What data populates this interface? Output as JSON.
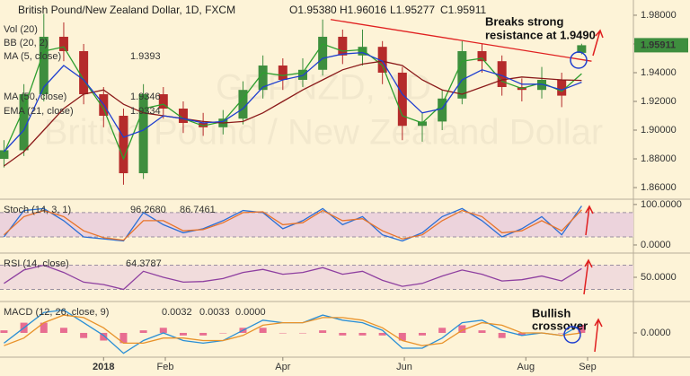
{
  "chart_data": [
    {
      "type": "candlestick",
      "title": "British Pound/New Zealand Dollar, 1D, FXCM",
      "header_ohlc": [
        "O1.95380",
        "H1.96016",
        "L1.95277",
        "C1.95911"
      ],
      "watermark": [
        "GBPNZD, 1D",
        "British Pound / New Zealand Dollar"
      ],
      "legend_extra": [
        "Vol (20)",
        "BB (20, 2)"
      ],
      "x": [
        -50,
        -40,
        -30,
        -20,
        -10,
        0,
        10,
        20,
        30,
        40,
        50,
        60,
        70,
        80,
        90,
        100,
        110,
        120,
        130,
        140,
        150,
        160,
        170,
        180,
        190,
        200,
        210,
        220,
        230,
        240
      ],
      "open": [
        1.88,
        1.886,
        1.925,
        1.965,
        1.955,
        1.925,
        1.91,
        1.87,
        1.925,
        1.915,
        1.905,
        1.902,
        1.908,
        1.928,
        1.945,
        1.935,
        1.942,
        1.965,
        1.952,
        1.958,
        1.94,
        1.903,
        1.906,
        1.922,
        1.955,
        1.948,
        1.93,
        1.928,
        1.935,
        1.9538
      ],
      "high": [
        1.893,
        1.932,
        1.981,
        1.975,
        1.96,
        1.93,
        1.915,
        1.932,
        1.93,
        1.92,
        1.912,
        1.914,
        1.934,
        1.952,
        1.95,
        1.95,
        1.977,
        1.97,
        1.97,
        1.962,
        1.944,
        1.912,
        1.928,
        1.962,
        1.96,
        1.952,
        1.936,
        1.944,
        1.94,
        1.96016
      ],
      "low": [
        1.874,
        1.882,
        1.92,
        1.948,
        1.918,
        1.902,
        1.862,
        1.866,
        1.908,
        1.898,
        1.896,
        1.897,
        1.904,
        1.922,
        1.928,
        1.93,
        1.938,
        1.946,
        1.945,
        1.932,
        1.893,
        1.892,
        1.9,
        1.918,
        1.94,
        1.924,
        1.92,
        1.922,
        1.916,
        1.95277
      ],
      "close": [
        1.886,
        1.925,
        1.965,
        1.955,
        1.925,
        1.91,
        1.87,
        1.925,
        1.915,
        1.905,
        1.902,
        1.908,
        1.928,
        1.945,
        1.935,
        1.942,
        1.965,
        1.952,
        1.958,
        1.94,
        1.903,
        1.906,
        1.922,
        1.955,
        1.948,
        1.93,
        1.928,
        1.935,
        1.924,
        1.95911
      ],
      "up_color": "#3e8e3e",
      "down_color": "#b52b2b",
      "series": [
        {
          "name": "MA (5, close)",
          "color": "#2e9e2e",
          "values": [
            1.884,
            1.915,
            1.955,
            1.958,
            1.935,
            1.915,
            1.88,
            1.915,
            1.918,
            1.908,
            1.903,
            1.906,
            1.922,
            1.94,
            1.938,
            1.94,
            1.96,
            1.955,
            1.956,
            1.945,
            1.91,
            1.905,
            1.918,
            1.948,
            1.95,
            1.934,
            1.929,
            1.933,
            1.927,
            1.9393
          ]
        },
        {
          "name": "MA (50, close)",
          "color": "#8b1a1a",
          "values": [
            1.875,
            1.885,
            1.9,
            1.915,
            1.925,
            1.928,
            1.918,
            1.912,
            1.91,
            1.908,
            1.906,
            1.905,
            1.906,
            1.912,
            1.92,
            1.928,
            1.935,
            1.942,
            1.946,
            1.948,
            1.945,
            1.935,
            1.928,
            1.925,
            1.93,
            1.935,
            1.937,
            1.936,
            1.935,
            1.9346
          ]
        },
        {
          "name": "EMA (21, close)",
          "color": "#1f3fd0",
          "values": [
            1.885,
            1.9,
            1.93,
            1.945,
            1.935,
            1.918,
            1.895,
            1.9,
            1.91,
            1.908,
            1.905,
            1.906,
            1.915,
            1.93,
            1.935,
            1.938,
            1.95,
            1.953,
            1.954,
            1.948,
            1.925,
            1.912,
            1.915,
            1.935,
            1.942,
            1.938,
            1.932,
            1.932,
            1.928,
            1.9334
          ]
        }
      ],
      "trendline": {
        "x": [
          114,
          245
        ],
        "y": [
          1.977,
          1.948
        ],
        "color": "#e02020"
      },
      "annotation": [
        "Breaks strong",
        "resistance at 1.9490"
      ],
      "xlim": [
        -52,
        266
      ],
      "xticks": [
        {
          "value": 0,
          "label": "2018"
        },
        {
          "value": 31,
          "label": "Feb"
        },
        {
          "value": 90,
          "label": "Apr"
        },
        {
          "value": 151,
          "label": "Jun"
        },
        {
          "value": 212,
          "label": "Aug"
        },
        {
          "value": 243,
          "label": "Sep"
        }
      ],
      "ylim": [
        1.8519,
        1.9906
      ],
      "yticks": [
        {
          "value": 1.86,
          "label": "1.86000"
        },
        {
          "value": 1.88,
          "label": "1.88000"
        },
        {
          "value": 1.9,
          "label": "1.90000"
        },
        {
          "value": 1.92,
          "label": "1.92000"
        },
        {
          "value": 1.94,
          "label": "1.94000"
        },
        {
          "value": 1.96,
          "label": "1.96000"
        },
        {
          "value": 1.98,
          "label": "1.98000"
        }
      ]
    },
    {
      "type": "line",
      "title": "Stoch (14, 3, 1)",
      "ylim": [
        -20,
        113
      ],
      "yticks": [
        {
          "value": 100,
          "label": "100.0000"
        },
        {
          "value": 0,
          "label": "0.0000"
        }
      ],
      "bands": [
        20,
        80
      ],
      "band_color": "#ecd3dc",
      "series": [
        {
          "color": "#2a6fd6",
          "values": [
            20,
            85,
            90,
            60,
            20,
            15,
            10,
            80,
            50,
            30,
            40,
            60,
            85,
            80,
            40,
            60,
            90,
            50,
            70,
            25,
            10,
            30,
            70,
            90,
            60,
            20,
            40,
            70,
            25,
            96.268
          ],
          "last_label": "96.2680"
        },
        {
          "color": "#e8742a",
          "values": [
            25,
            70,
            85,
            70,
            35,
            18,
            12,
            60,
            60,
            35,
            38,
            55,
            80,
            82,
            50,
            55,
            85,
            60,
            65,
            35,
            15,
            25,
            60,
            85,
            70,
            30,
            35,
            60,
            35,
            86.7461
          ]
        }
      ]
    },
    {
      "type": "line",
      "title": "RSI (14, close)",
      "ylim": [
        10,
        90
      ],
      "yticks": [
        {
          "value": 50,
          "label": "50.0000"
        }
      ],
      "bands": [
        30,
        70
      ],
      "band_color": "#f1dcdc",
      "series": [
        {
          "color": "#8e3fa0",
          "values": [
            40,
            62,
            70,
            58,
            42,
            38,
            30,
            60,
            50,
            42,
            43,
            48,
            58,
            63,
            55,
            58,
            66,
            55,
            60,
            45,
            35,
            40,
            52,
            62,
            55,
            44,
            46,
            52,
            44,
            64.3787
          ]
        }
      ]
    },
    {
      "type": "line",
      "title": "MACD (12, 26, close, 9)",
      "ylim": [
        -0.0095,
        0.0123
      ],
      "yticks": [
        {
          "value": 0,
          "label": "0.0000"
        }
      ],
      "annotation": [
        "Bullish",
        "crossover"
      ],
      "series": [
        {
          "style": "bar",
          "color": "#e0407a",
          "values": [
            0.001,
            0.004,
            0.004,
            0.002,
            -0.002,
            -0.003,
            -0.004,
            0.001,
            0.002,
            -0.001,
            -0.001,
            0.0,
            0.002,
            0.002,
            0.0,
            0.0,
            0.001,
            -0.001,
            -0.001,
            -0.001,
            -0.003,
            -0.001,
            0.002,
            0.003,
            0.001,
            -0.002,
            -0.001,
            0.0,
            0.0,
            0.0032
          ]
        },
        {
          "color": "#2a8fd6",
          "values": [
            -0.004,
            0.002,
            0.008,
            0.009,
            0.004,
            -0.001,
            -0.008,
            -0.003,
            0.0,
            -0.003,
            -0.004,
            -0.003,
            0.001,
            0.005,
            0.004,
            0.004,
            0.007,
            0.005,
            0.004,
            0.001,
            -0.006,
            -0.006,
            -0.002,
            0.004,
            0.005,
            0.001,
            -0.001,
            0.0,
            -0.001,
            0.0033
          ]
        },
        {
          "color": "#e8922a",
          "values": [
            -0.005,
            -0.002,
            0.004,
            0.007,
            0.006,
            0.002,
            -0.004,
            -0.004,
            -0.002,
            -0.002,
            -0.003,
            -0.003,
            -0.001,
            0.003,
            0.004,
            0.004,
            0.006,
            0.006,
            0.005,
            0.002,
            -0.003,
            -0.005,
            -0.004,
            0.001,
            0.004,
            0.003,
            0.0,
            0.0,
            -0.001,
            0.0
          ],
          "last_label": "0.0000"
        }
      ]
    }
  ]
}
